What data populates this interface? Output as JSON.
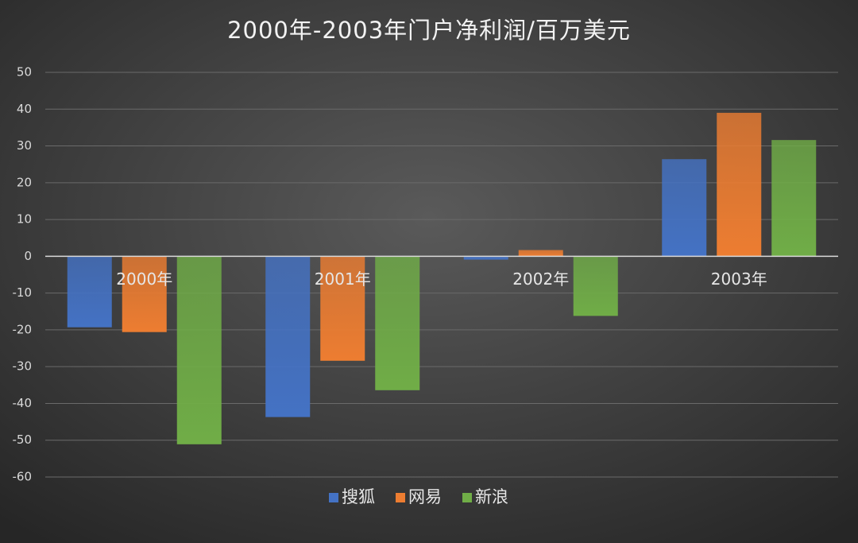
{
  "chart_data": {
    "type": "bar",
    "title": "2000年-2003年门户净利润/百万美元",
    "categories": [
      "2000年",
      "2001年",
      "2002年",
      "2003年"
    ],
    "series": [
      {
        "name": "搜狐",
        "color": "#4472c4",
        "values": [
          -19.3,
          -43.7,
          -0.9,
          26.4
        ]
      },
      {
        "name": "网易",
        "color": "#ed7d31",
        "values": [
          -20.6,
          -28.4,
          1.7,
          39.0
        ]
      },
      {
        "name": "新浪",
        "color": "#70ad47",
        "values": [
          -51.1,
          -36.4,
          -16.2,
          31.6
        ]
      }
    ],
    "ylim": [
      -60,
      50
    ],
    "yticks": [
      -60,
      -50,
      -40,
      -30,
      -20,
      -10,
      0,
      10,
      20,
      30,
      40,
      50
    ],
    "grid": true,
    "legend": "bottom"
  }
}
